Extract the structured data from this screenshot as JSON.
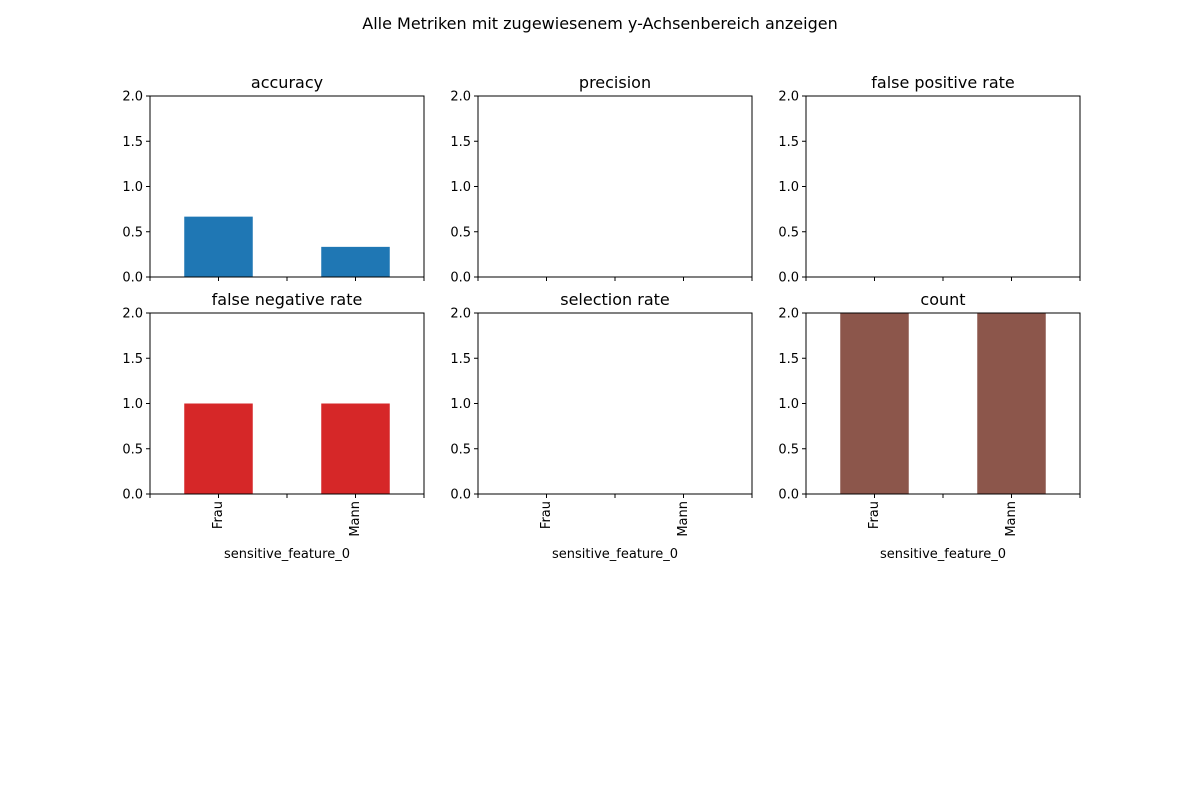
{
  "figure": {
    "suptitle": "Alle Metriken mit zugewiesenem y-Achsenbereich anzeigen"
  },
  "chart_data": [
    {
      "type": "bar",
      "title": "accuracy",
      "categories": [
        "Frau",
        "Mann"
      ],
      "values": [
        0.667,
        0.333
      ],
      "color": "#1f77b4",
      "xlabel": "",
      "ylabel": "",
      "ylim": [
        0,
        2
      ],
      "yticks": [
        "0.0",
        "0.5",
        "1.0",
        "1.5",
        "2.0"
      ],
      "show_xticklabels": false,
      "grid": false
    },
    {
      "type": "bar",
      "title": "precision",
      "categories": [
        "Frau",
        "Mann"
      ],
      "values": [
        0,
        0
      ],
      "color": "#ff7f0e",
      "xlabel": "",
      "ylabel": "",
      "ylim": [
        0,
        2
      ],
      "yticks": [
        "0.0",
        "0.5",
        "1.0",
        "1.5",
        "2.0"
      ],
      "show_xticklabels": false,
      "grid": false
    },
    {
      "type": "bar",
      "title": "false positive rate",
      "categories": [
        "Frau",
        "Mann"
      ],
      "values": [
        0,
        0
      ],
      "color": "#2ca02c",
      "xlabel": "",
      "ylabel": "",
      "ylim": [
        0,
        2
      ],
      "yticks": [
        "0.0",
        "0.5",
        "1.0",
        "1.5",
        "2.0"
      ],
      "show_xticklabels": false,
      "grid": false
    },
    {
      "type": "bar",
      "title": "false negative rate",
      "categories": [
        "Frau",
        "Mann"
      ],
      "values": [
        1,
        1
      ],
      "color": "#d62728",
      "xlabel": "sensitive_feature_0",
      "ylabel": "",
      "ylim": [
        0,
        2
      ],
      "yticks": [
        "0.0",
        "0.5",
        "1.0",
        "1.5",
        "2.0"
      ],
      "show_xticklabels": true,
      "grid": false
    },
    {
      "type": "bar",
      "title": "selection rate",
      "categories": [
        "Frau",
        "Mann"
      ],
      "values": [
        0,
        0
      ],
      "color": "#9467bd",
      "xlabel": "sensitive_feature_0",
      "ylabel": "",
      "ylim": [
        0,
        2
      ],
      "yticks": [
        "0.0",
        "0.5",
        "1.0",
        "1.5",
        "2.0"
      ],
      "show_xticklabels": true,
      "grid": false
    },
    {
      "type": "bar",
      "title": "count",
      "categories": [
        "Frau",
        "Mann"
      ],
      "values": [
        2,
        2
      ],
      "color": "#8c564b",
      "xlabel": "sensitive_feature_0",
      "ylabel": "",
      "ylim": [
        0,
        2
      ],
      "yticks": [
        "0.0",
        "0.5",
        "1.0",
        "1.5",
        "2.0"
      ],
      "show_xticklabels": true,
      "grid": false
    }
  ]
}
